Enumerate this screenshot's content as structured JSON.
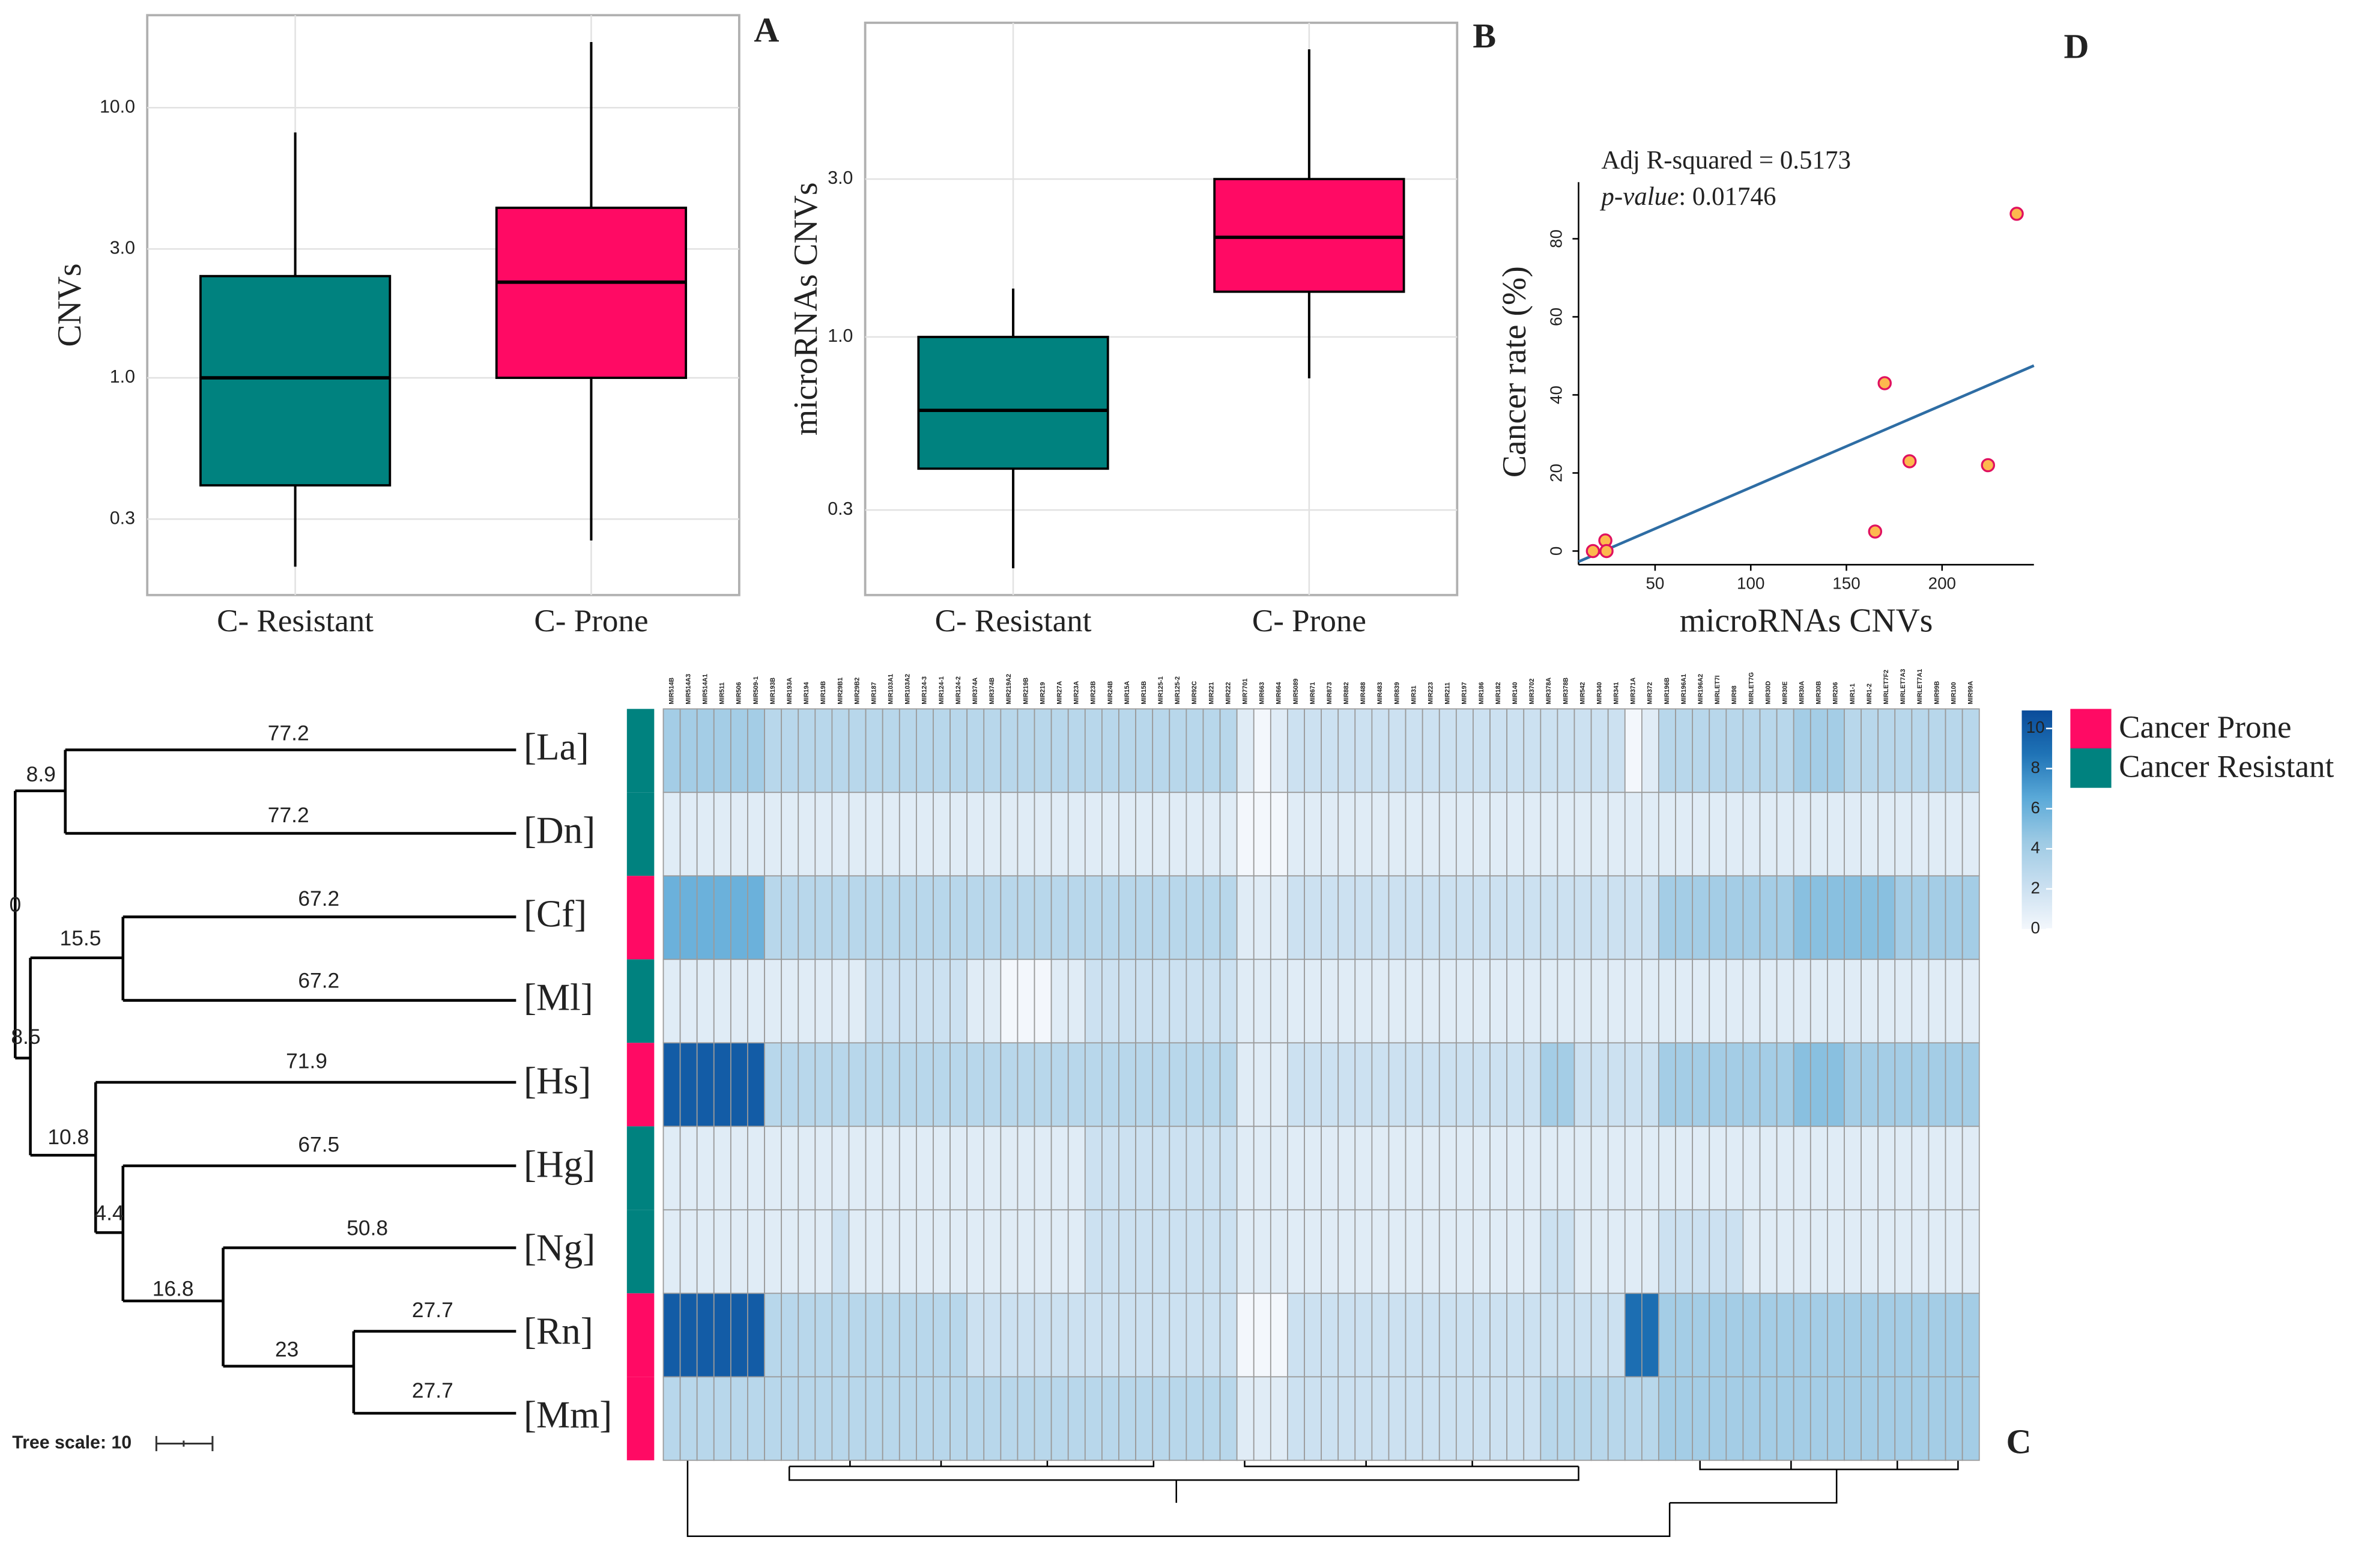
{
  "chart_data": [
    {
      "type": "box",
      "panel_label": "A",
      "ylabel": "CNVs",
      "log_y": true,
      "grid": true,
      "categories": [
        "C- Resistant",
        "C- Prone"
      ],
      "ylim": [
        0.157,
        22
      ],
      "yticks": [
        0.3,
        {
          "value": 1,
          "label": "1.0"
        },
        {
          "value": 3,
          "label": "3.0"
        },
        {
          "value": 10,
          "label": "10.0"
        }
      ],
      "boxes": [
        {
          "min": 0.2,
          "q1": 0.4,
          "median": 1,
          "q3": 2.38,
          "max": 8.1,
          "color": "#00827f"
        },
        {
          "min": 0.25,
          "q1": 1,
          "median": 2.26,
          "q3": 4.26,
          "max": 17.5,
          "color": "#ff0a64"
        }
      ]
    },
    {
      "type": "box",
      "panel_label": "B",
      "ylabel": "microRNAs CNVs",
      "log_y": true,
      "grid": true,
      "categories": [
        "C- Resistant",
        "C- Prone"
      ],
      "ylim": [
        0.166,
        8.9
      ],
      "yticks": [
        0.3,
        {
          "value": 1,
          "label": "1.0"
        },
        {
          "value": 3,
          "label": "3.0"
        }
      ],
      "boxes": [
        {
          "min": 0.2,
          "q1": 0.4,
          "median": 0.6,
          "q3": 1,
          "max": 1.4,
          "color": "#00827f"
        },
        {
          "min": 0.75,
          "q1": 1.37,
          "median": 2,
          "q3": 3,
          "max": 7.4,
          "color": "#ff0a64"
        }
      ]
    },
    {
      "type": "scatter",
      "panel_label": "D",
      "xlabel": "microRNAs CNVs",
      "ylabel": "Cancer rate (%)",
      "annotations": [
        "Adj R-squared = 0.5173"
      ],
      "pvalue_label": "p-value",
      "pvalue_text": ": 0.01746",
      "x": [
        17.5,
        24,
        24.6,
        239,
        170,
        183,
        224,
        165
      ],
      "y": [
        0,
        2.7,
        0,
        86.4,
        43,
        23,
        22,
        5
      ],
      "color": "#fdb94e",
      "edge_color": "#e0115f",
      "fit": {
        "slope": 0.211,
        "intercept": -4.83,
        "color": "#2e6da4"
      },
      "xlim": [
        10,
        248
      ],
      "xticks": [
        50,
        100,
        150,
        200
      ],
      "ylim": [
        -3.5,
        94.5
      ],
      "yticks": [
        0,
        20,
        40,
        60,
        80
      ],
      "grid": false
    },
    {
      "type": "heatmap",
      "panel_label": "C",
      "columns": [
        "MIR514B",
        "MIR514A3",
        "MIR514A1",
        "MIR511",
        "MIR506",
        "MIR509-1",
        "MIR193B",
        "MIR193A",
        "MIR194",
        "MIR19B",
        "MIR29B1",
        "MIR29B2",
        "MIR187",
        "MIR103A1",
        "MIR103A2",
        "MIR124-3",
        "MIR124-1",
        "MIR124-2",
        "MIR374A",
        "MIR374B",
        "MIR219A2",
        "MIR219B",
        "MIR219",
        "MIR27A",
        "MIR23A",
        "MIR23B",
        "MIR24B",
        "MIR15A",
        "MIR15B",
        "MIR125-1",
        "MIR125-2",
        "MIR92C",
        "MIR221",
        "MIR222",
        "MIR7701",
        "MIR663",
        "MIR664",
        "MIR5089",
        "MIR671",
        "MIR873",
        "MIR882",
        "MIR488",
        "MIR483",
        "MIR839",
        "MIR31",
        "MIR223",
        "MIR211",
        "MIR197",
        "MIR186",
        "MIR182",
        "MIR140",
        "MIR3702",
        "MIR378A",
        "MIR378B",
        "MIR542",
        "MIR340",
        "MIR341",
        "MIR371A",
        "MIR372",
        "MIR196B",
        "MIR196A1",
        "MIR196A2",
        "MIRLET7I",
        "MIR98",
        "MIRLET7G",
        "MIR30D",
        "MIR30E",
        "MIR30A",
        "MIR30B",
        "MIR206",
        "MIR1-1",
        "MIR1-2",
        "MIRLET7F2",
        "MIRLET7A3",
        "MIRLET7A1",
        "MIR99B",
        "MIR100",
        "MIR99A"
      ],
      "values": [
        [
          4,
          4,
          4,
          4,
          4,
          4,
          3,
          3,
          3,
          3,
          3,
          3,
          3,
          3,
          3,
          3,
          3,
          3,
          3,
          3,
          3,
          3,
          3,
          3,
          3,
          3,
          3,
          3,
          3,
          3,
          3,
          3,
          3,
          3,
          1,
          0,
          1,
          2,
          2,
          2,
          2,
          2,
          2,
          2,
          2,
          2,
          2,
          2,
          2,
          2,
          2,
          2,
          2,
          2,
          2,
          2,
          2,
          0,
          1,
          3,
          3,
          3,
          3,
          3,
          3,
          3,
          3,
          4,
          4,
          4,
          3,
          3,
          3,
          3,
          3,
          3,
          3,
          3
        ],
        [
          1,
          1,
          1,
          1,
          1,
          1,
          1,
          1,
          1,
          1,
          1,
          1,
          1,
          1,
          1,
          1,
          1,
          1,
          1,
          1,
          1,
          1,
          1,
          1,
          1,
          1,
          1,
          1,
          1,
          1,
          1,
          1,
          1,
          1,
          0,
          0,
          0,
          1,
          1,
          1,
          1,
          1,
          1,
          1,
          1,
          1,
          1,
          1,
          1,
          1,
          1,
          1,
          1,
          1,
          1,
          1,
          1,
          1,
          1,
          1,
          1,
          1,
          1,
          1,
          1,
          1,
          1,
          1,
          1,
          1,
          1,
          1,
          1,
          1,
          1,
          1,
          1,
          1
        ],
        [
          6,
          6,
          6,
          6,
          6,
          6,
          3,
          3,
          3,
          3,
          3,
          3,
          3,
          3,
          3,
          3,
          3,
          3,
          3,
          3,
          3,
          3,
          3,
          3,
          3,
          3,
          3,
          3,
          3,
          3,
          3,
          3,
          3,
          3,
          1,
          1,
          1,
          2,
          2,
          2,
          2,
          2,
          2,
          2,
          2,
          2,
          2,
          2,
          2,
          2,
          2,
          2,
          2,
          2,
          2,
          2,
          2,
          2,
          2,
          4,
          4,
          4,
          4,
          4,
          4,
          4,
          4,
          5,
          5,
          5,
          5,
          5,
          5,
          4,
          4,
          4,
          4,
          4
        ],
        [
          1,
          1,
          1,
          1,
          1,
          1,
          1,
          1,
          1,
          1,
          1,
          1,
          2,
          2,
          2,
          2,
          2,
          2,
          1,
          1,
          0,
          0,
          0,
          1,
          1,
          2,
          2,
          2,
          2,
          2,
          2,
          2,
          2,
          2,
          1,
          1,
          1,
          1,
          1,
          1,
          1,
          1,
          1,
          1,
          1,
          1,
          1,
          1,
          1,
          1,
          1,
          1,
          1,
          1,
          1,
          1,
          1,
          1,
          1,
          1,
          1,
          1,
          1,
          1,
          1,
          1,
          1,
          1,
          1,
          1,
          1,
          1,
          1,
          1,
          1,
          1,
          1,
          1
        ],
        [
          10,
          10,
          10,
          10,
          10,
          10,
          3,
          3,
          3,
          3,
          3,
          3,
          3,
          3,
          3,
          3,
          3,
          3,
          3,
          3,
          3,
          3,
          3,
          3,
          3,
          3,
          3,
          3,
          3,
          3,
          3,
          3,
          3,
          3,
          1,
          1,
          1,
          2,
          2,
          2,
          2,
          2,
          2,
          2,
          2,
          2,
          2,
          2,
          2,
          2,
          2,
          2,
          4,
          4,
          2,
          2,
          2,
          2,
          2,
          4,
          4,
          4,
          4,
          4,
          4,
          4,
          4,
          5,
          5,
          5,
          4,
          4,
          4,
          4,
          4,
          4,
          4,
          4
        ],
        [
          1,
          1,
          1,
          1,
          1,
          1,
          1,
          1,
          1,
          1,
          1,
          1,
          1,
          1,
          1,
          1,
          1,
          1,
          1,
          1,
          1,
          1,
          1,
          1,
          1,
          2,
          2,
          2,
          2,
          2,
          2,
          2,
          2,
          2,
          1,
          1,
          1,
          1,
          1,
          1,
          1,
          1,
          1,
          1,
          1,
          1,
          1,
          1,
          1,
          1,
          1,
          1,
          1,
          1,
          1,
          1,
          1,
          1,
          1,
          1,
          1,
          1,
          1,
          1,
          1,
          1,
          1,
          1,
          1,
          1,
          1,
          1,
          1,
          1,
          1,
          1,
          1,
          1
        ],
        [
          1,
          1,
          1,
          1,
          1,
          1,
          1,
          1,
          1,
          1,
          2,
          1,
          1,
          1,
          1,
          1,
          1,
          1,
          1,
          1,
          1,
          1,
          1,
          1,
          1,
          2,
          2,
          2,
          2,
          2,
          2,
          2,
          2,
          2,
          1,
          1,
          1,
          1,
          1,
          1,
          1,
          1,
          1,
          1,
          1,
          1,
          1,
          1,
          1,
          1,
          1,
          1,
          2,
          2,
          1,
          1,
          1,
          1,
          1,
          2,
          2,
          2,
          2,
          2,
          1,
          1,
          1,
          1,
          1,
          1,
          1,
          1,
          1,
          1,
          1,
          1,
          1,
          1
        ],
        [
          10,
          10,
          10,
          10,
          10,
          10,
          3,
          3,
          3,
          3,
          3,
          3,
          3,
          3,
          3,
          3,
          3,
          3,
          2,
          2,
          2,
          2,
          2,
          2,
          2,
          2,
          2,
          2,
          2,
          2,
          2,
          2,
          2,
          2,
          0,
          0,
          0,
          2,
          2,
          2,
          2,
          2,
          2,
          2,
          2,
          2,
          2,
          2,
          2,
          2,
          2,
          2,
          2,
          2,
          2,
          2,
          2,
          9,
          9,
          4,
          4,
          4,
          4,
          4,
          4,
          4,
          4,
          4,
          4,
          4,
          4,
          4,
          4,
          4,
          4,
          4,
          4,
          4
        ],
        [
          3,
          3,
          3,
          3,
          3,
          3,
          3,
          3,
          3,
          3,
          3,
          3,
          3,
          3,
          3,
          3,
          3,
          3,
          3,
          3,
          3,
          3,
          3,
          3,
          3,
          3,
          3,
          3,
          3,
          3,
          3,
          3,
          3,
          3,
          1,
          1,
          1,
          2,
          2,
          2,
          2,
          2,
          2,
          2,
          2,
          2,
          2,
          2,
          2,
          2,
          2,
          2,
          3,
          3,
          3,
          3,
          3,
          3,
          3,
          4,
          4,
          4,
          4,
          4,
          4,
          4,
          4,
          4,
          4,
          4,
          4,
          4,
          4,
          4,
          4,
          4,
          4,
          4
        ]
      ],
      "row_colors": [
        "#00827f",
        "#00827f",
        "#ff0a64",
        "#00827f",
        "#ff0a64",
        "#00827f",
        "#00827f",
        "#ff0a64",
        "#ff0a64"
      ],
      "zlim": [
        0,
        10.9
      ],
      "zticks": [
        0,
        2,
        4,
        6,
        8,
        10
      ],
      "colors": [
        "#f3f7fc",
        "#c9dff0",
        "#9dcae4",
        "#5aa9d8",
        "#1f73b6",
        "#0a4b9a"
      ],
      "legend": [
        {
          "name": "Cancer Prone",
          "color": "#ff0a64"
        },
        {
          "name": "Cancer Resistant",
          "color": "#00827f"
        }
      ]
    }
  ],
  "tree": {
    "leaves": [
      "[La]",
      "[Dn]",
      "[Cf]",
      "[Ml]",
      "[Hs]",
      "[Hg]",
      "[Ng]",
      "[Rn]",
      "[Mm]"
    ],
    "branch_lengths": [
      77.2,
      77.2,
      8.9,
      0,
      67.2,
      67.2,
      15.5,
      8.5,
      71.9,
      10.8,
      67.5,
      4.4,
      50.8,
      16.8,
      23,
      27.7,
      27.7
    ],
    "scale_label": "Tree scale: 10"
  }
}
